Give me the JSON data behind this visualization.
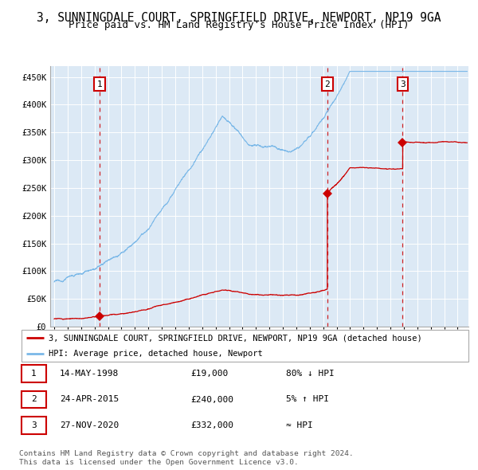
{
  "title": "3, SUNNINGDALE COURT, SPRINGFIELD DRIVE, NEWPORT, NP19 9GA",
  "subtitle": "Price paid vs. HM Land Registry's House Price Index (HPI)",
  "xlim": [
    1994.7,
    2025.8
  ],
  "ylim": [
    0,
    470000
  ],
  "yticks": [
    0,
    50000,
    100000,
    150000,
    200000,
    250000,
    300000,
    350000,
    400000,
    450000
  ],
  "ytick_labels": [
    "£0",
    "£50K",
    "£100K",
    "£150K",
    "£200K",
    "£250K",
    "£300K",
    "£350K",
    "£400K",
    "£450K"
  ],
  "xticks": [
    1995,
    1996,
    1997,
    1998,
    1999,
    2000,
    2001,
    2002,
    2003,
    2004,
    2005,
    2006,
    2007,
    2008,
    2009,
    2010,
    2011,
    2012,
    2013,
    2014,
    2015,
    2016,
    2017,
    2018,
    2019,
    2020,
    2021,
    2022,
    2023,
    2024,
    2025
  ],
  "background_color": "#dce9f5",
  "grid_color": "#ffffff",
  "sale_dates": [
    1998.37,
    2015.31,
    2020.91
  ],
  "sale_prices": [
    19000,
    240000,
    332000
  ],
  "sale_labels": [
    "1",
    "2",
    "3"
  ],
  "hpi_line_color": "#7ab8e8",
  "sale_line_color": "#cc0000",
  "dashed_line_color": "#cc0000",
  "marker_color": "#cc0000",
  "legend_items": [
    "3, SUNNINGDALE COURT, SPRINGFIELD DRIVE, NEWPORT, NP19 9GA (detached house)",
    "HPI: Average price, detached house, Newport"
  ],
  "table_rows": [
    {
      "num": "1",
      "date": "14-MAY-1998",
      "price": "£19,000",
      "change": "80% ↓ HPI"
    },
    {
      "num": "2",
      "date": "24-APR-2015",
      "price": "£240,000",
      "change": "5% ↑ HPI"
    },
    {
      "num": "3",
      "date": "27-NOV-2020",
      "price": "£332,000",
      "change": "≈ HPI"
    }
  ],
  "footer": "Contains HM Land Registry data © Crown copyright and database right 2024.\nThis data is licensed under the Open Government Licence v3.0.",
  "title_fontsize": 10.5,
  "subtitle_fontsize": 9,
  "tick_fontsize": 7.5,
  "legend_fontsize": 7.5,
  "table_fontsize": 8,
  "footer_fontsize": 6.8
}
